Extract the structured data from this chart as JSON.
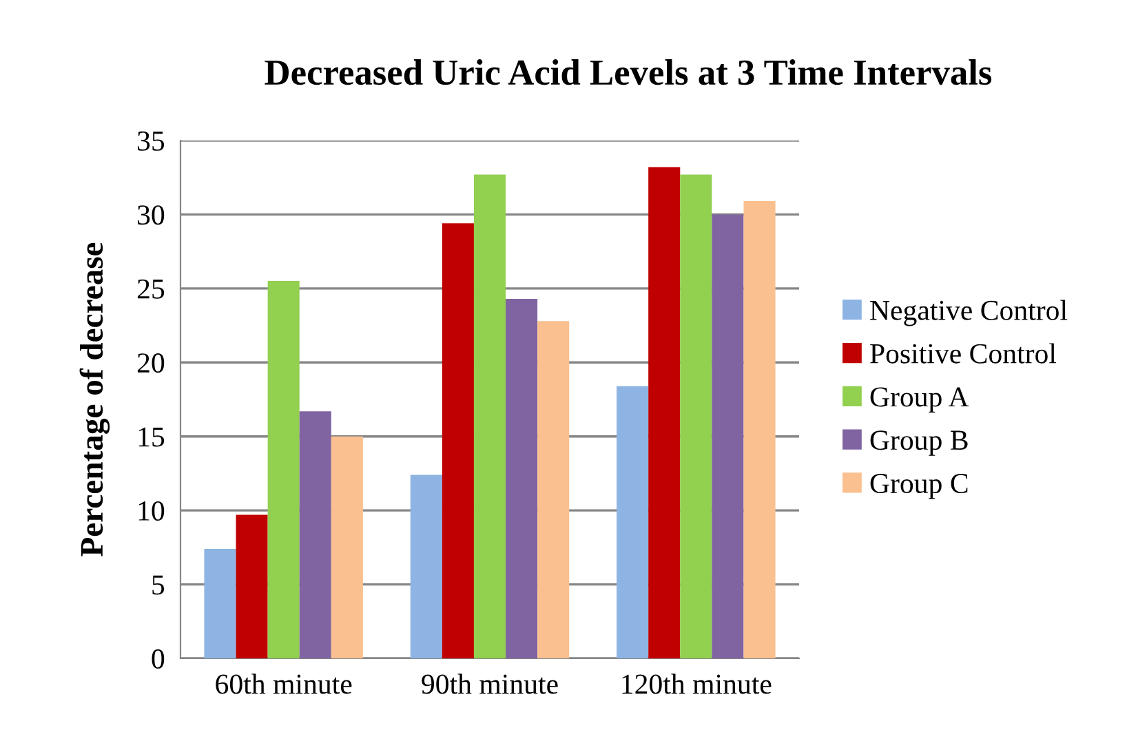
{
  "chart_data": {
    "type": "bar",
    "title": "Decreased Uric Acid Levels at 3 Time Intervals",
    "ylabel": "Percentage of decrease",
    "categories": [
      "60th minute",
      "90th minute",
      "120th minute"
    ],
    "series": [
      {
        "name": "Negative Control",
        "color": "#8eb4e3",
        "values": [
          7.4,
          12.4,
          18.4
        ]
      },
      {
        "name": "Positive Control",
        "color": "#c00000",
        "values": [
          9.7,
          29.4,
          33.2
        ]
      },
      {
        "name": "Group A",
        "color": "#92d050",
        "values": [
          25.5,
          32.7,
          32.7
        ]
      },
      {
        "name": "Group B",
        "color": "#8064a2",
        "values": [
          16.7,
          24.3,
          30.0
        ]
      },
      {
        "name": "Group C",
        "color": "#fac090",
        "values": [
          15.0,
          22.8,
          30.9
        ]
      }
    ],
    "ylim": [
      0,
      35
    ],
    "yticks": [
      0,
      5,
      10,
      15,
      20,
      25,
      30,
      35
    ],
    "grid": "y",
    "legend": "right"
  }
}
